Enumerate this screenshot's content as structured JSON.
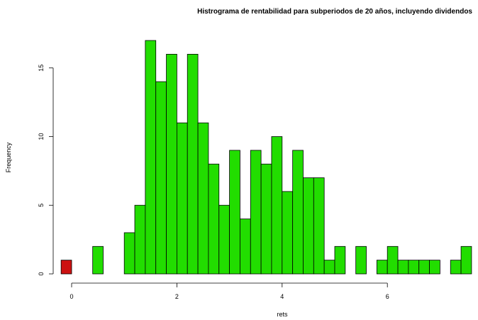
{
  "chart_data": {
    "type": "bar",
    "title": "Histrograma de rentabilidad para subperiodos de 20 años, incluyendo dividendos",
    "xlabel": "rets",
    "ylabel": "Frequency",
    "bin_width": 0.2,
    "xlim": [
      -0.2,
      7.6
    ],
    "ylim": [
      0,
      17
    ],
    "xticks": [
      0,
      2,
      4,
      6
    ],
    "yticks": [
      0,
      5,
      10,
      15
    ],
    "grid": false,
    "bins": [
      {
        "x0": -0.2,
        "value": 1,
        "color": "#cc1111"
      },
      {
        "x0": 0.0,
        "value": 0
      },
      {
        "x0": 0.2,
        "value": 0
      },
      {
        "x0": 0.4,
        "value": 2
      },
      {
        "x0": 0.6,
        "value": 0
      },
      {
        "x0": 0.8,
        "value": 0
      },
      {
        "x0": 1.0,
        "value": 3
      },
      {
        "x0": 1.2,
        "value": 5
      },
      {
        "x0": 1.4,
        "value": 17
      },
      {
        "x0": 1.6,
        "value": 14
      },
      {
        "x0": 1.8,
        "value": 16
      },
      {
        "x0": 2.0,
        "value": 11
      },
      {
        "x0": 2.2,
        "value": 16
      },
      {
        "x0": 2.4,
        "value": 11
      },
      {
        "x0": 2.6,
        "value": 8
      },
      {
        "x0": 2.8,
        "value": 5
      },
      {
        "x0": 3.0,
        "value": 9
      },
      {
        "x0": 3.2,
        "value": 4
      },
      {
        "x0": 3.4,
        "value": 9
      },
      {
        "x0": 3.6,
        "value": 8
      },
      {
        "x0": 3.8,
        "value": 10
      },
      {
        "x0": 4.0,
        "value": 6
      },
      {
        "x0": 4.2,
        "value": 9
      },
      {
        "x0": 4.4,
        "value": 7
      },
      {
        "x0": 4.6,
        "value": 7
      },
      {
        "x0": 4.8,
        "value": 1
      },
      {
        "x0": 5.0,
        "value": 2
      },
      {
        "x0": 5.2,
        "value": 0
      },
      {
        "x0": 5.4,
        "value": 2
      },
      {
        "x0": 5.6,
        "value": 0
      },
      {
        "x0": 5.8,
        "value": 1
      },
      {
        "x0": 6.0,
        "value": 2
      },
      {
        "x0": 6.2,
        "value": 1
      },
      {
        "x0": 6.4,
        "value": 1
      },
      {
        "x0": 6.6,
        "value": 1
      },
      {
        "x0": 6.8,
        "value": 1
      },
      {
        "x0": 7.0,
        "value": 0
      },
      {
        "x0": 7.2,
        "value": 1
      },
      {
        "x0": 7.4,
        "value": 2
      }
    ],
    "colors": {
      "bar_fill": "#22dd00",
      "highlight_fill": "#cc1111",
      "bar_stroke": "#000000",
      "background": "#ffffff"
    }
  }
}
